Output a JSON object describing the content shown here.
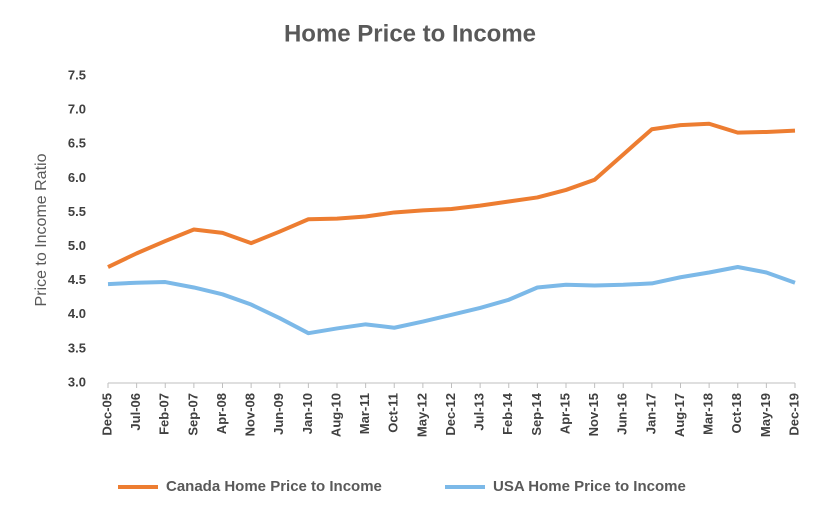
{
  "chart_data": {
    "type": "line",
    "title": "Home Price to Income",
    "y_label": "Price to Income Ratio",
    "categories": [
      "Dec-05",
      "Jul-06",
      "Feb-07",
      "Sep-07",
      "Apr-08",
      "Nov-08",
      "Jun-09",
      "Jan-10",
      "Aug-10",
      "Mar-11",
      "Oct-11",
      "May-12",
      "Dec-12",
      "Jul-13",
      "Feb-14",
      "Sep-14",
      "Apr-15",
      "Nov-15",
      "Jun-16",
      "Jan-17",
      "Aug-17",
      "Mar-18",
      "Oct-18",
      "May-19",
      "Dec-19"
    ],
    "series": [
      {
        "name": "Canada Home Price to Income",
        "color": "#ed7d31",
        "values": [
          4.7,
          4.9,
          5.08,
          5.25,
          5.2,
          5.05,
          5.22,
          5.4,
          5.41,
          5.44,
          5.5,
          5.53,
          5.55,
          5.6,
          5.66,
          5.72,
          5.83,
          5.98,
          6.35,
          6.72,
          6.78,
          6.8,
          6.67,
          6.68,
          6.7
        ]
      },
      {
        "name": "USA Home Price to Income",
        "color": "#7cb9e8",
        "values": [
          4.45,
          4.47,
          4.48,
          4.4,
          4.3,
          4.15,
          3.95,
          3.73,
          3.8,
          3.86,
          3.81,
          3.9,
          4.0,
          4.1,
          4.22,
          4.4,
          4.44,
          4.43,
          4.44,
          4.46,
          4.55,
          4.62,
          4.7,
          4.62,
          4.47
        ]
      }
    ],
    "ylim": [
      3,
      7.5
    ],
    "yticks": [
      {
        "value": 3,
        "label": "3.0"
      },
      {
        "value": 3.5,
        "label": "3.5"
      },
      {
        "value": 4,
        "label": "4.0"
      },
      {
        "value": 4.5,
        "label": "4.5"
      },
      {
        "value": 5,
        "label": "5.0"
      },
      {
        "value": 5.5,
        "label": "5.5"
      },
      {
        "value": 6,
        "label": "6.0"
      },
      {
        "value": 6.5,
        "label": "6.5"
      },
      {
        "value": 7,
        "label": "7.0"
      },
      {
        "value": 7.5,
        "label": "7.5"
      }
    ],
    "grid": false,
    "legend": "bottom"
  }
}
